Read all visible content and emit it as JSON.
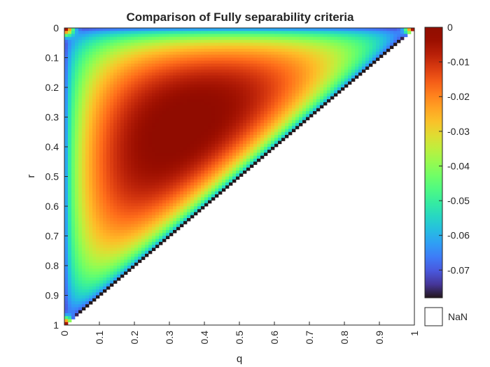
{
  "chart_data": {
    "type": "heatmap",
    "title": "Comparison of Fully separability criteria",
    "xlabel": "q",
    "ylabel": "r",
    "xlim": [
      0,
      1
    ],
    "ylim": [
      0,
      1
    ],
    "y_direction": "reversed",
    "x_ticks": [
      "0",
      "0.1",
      "0.2",
      "0.3",
      "0.4",
      "0.5",
      "0.6",
      "0.7",
      "0.8",
      "0.9",
      "1"
    ],
    "y_ticks": [
      "0",
      "0.1",
      "0.2",
      "0.3",
      "0.4",
      "0.5",
      "0.6",
      "0.7",
      "0.8",
      "0.9",
      "1"
    ],
    "grid": false,
    "grid_resolution": 100,
    "valid_region": "q + r <= 1 (upper-left triangle); values outside are NaN",
    "value_range": [
      -0.078,
      0
    ],
    "peak": {
      "q": 0.333,
      "r": 0.333,
      "value": -0.001
    },
    "edge_value": -0.078,
    "corner_value": 0,
    "colormap": "turbo",
    "colorbar": {
      "ticks": [
        "0",
        "-0.01",
        "-0.02",
        "-0.03",
        "-0.04",
        "-0.05",
        "-0.06",
        "-0.07"
      ],
      "tick_values": [
        0,
        -0.01,
        -0.02,
        -0.03,
        -0.04,
        -0.05,
        -0.06,
        -0.07
      ],
      "range": [
        -0.078,
        0
      ],
      "nan_label": "NaN"
    }
  }
}
